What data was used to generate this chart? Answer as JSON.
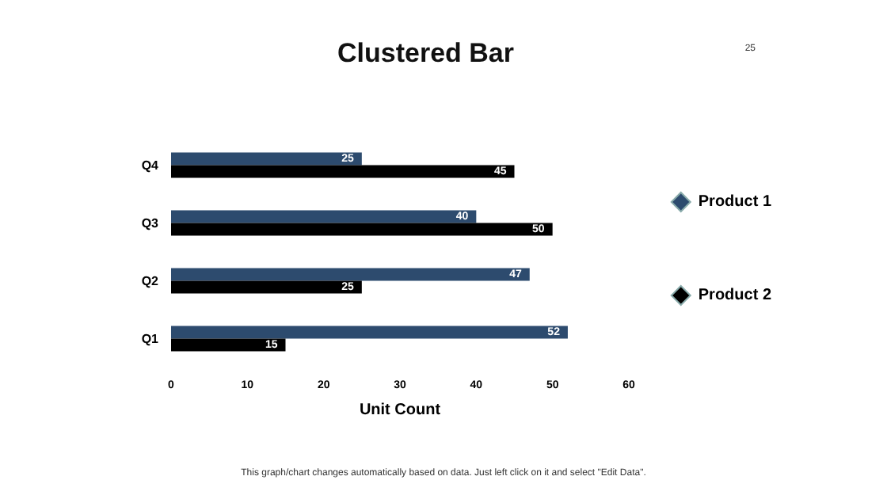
{
  "chart_data": {
    "type": "bar",
    "orientation": "horizontal",
    "title": "Clustered Bar",
    "xlabel": "Unit Count",
    "categories": [
      "Q4",
      "Q3",
      "Q2",
      "Q1"
    ],
    "series": [
      {
        "name": "Product 1",
        "color": "#2d4b6e",
        "values": [
          25,
          40,
          47,
          52
        ]
      },
      {
        "name": "Product 2",
        "color": "#000000",
        "values": [
          45,
          50,
          25,
          15
        ]
      }
    ],
    "xlim": [
      0,
      60
    ],
    "xticks": [
      0,
      10,
      20,
      30,
      40,
      50,
      60
    ],
    "grid": false,
    "legend": "right",
    "marker": "diamond",
    "data_labels": true,
    "annotations": [
      "25",
      "This graph/chart changes automatically based on data. Just left click on it and select \"Edit Data\"."
    ]
  }
}
